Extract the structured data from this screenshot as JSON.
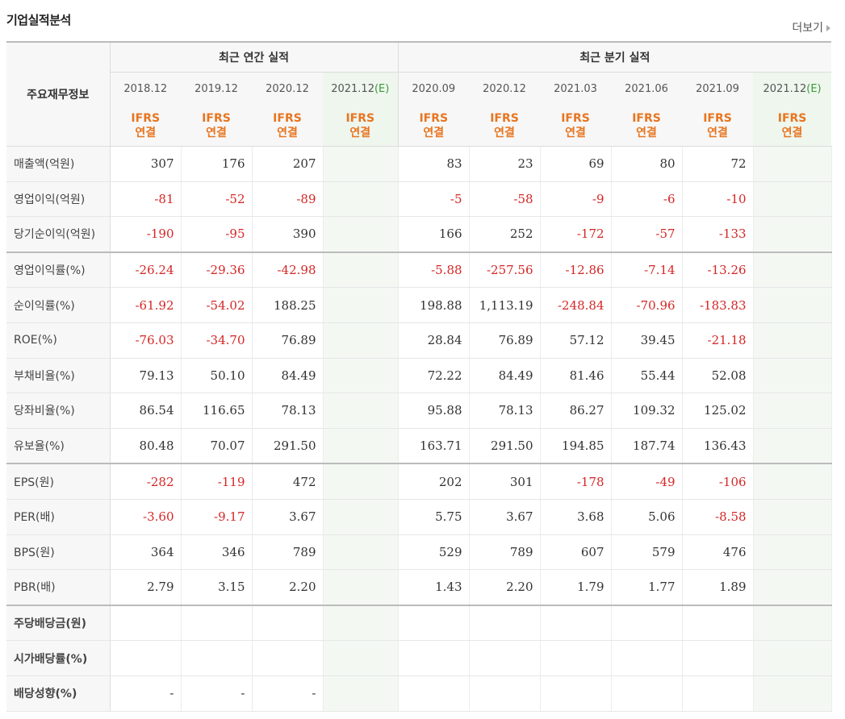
{
  "title": "기업실적분석",
  "more_label": "더보기",
  "header": {
    "row_label": "주요재무정보",
    "annual_group": "최근 연간 실적",
    "quarter_group": "최근 분기 실적",
    "columns": [
      {
        "period": "2018.12",
        "est": false,
        "std": "IFRS",
        "cons": "연결"
      },
      {
        "period": "2019.12",
        "est": false,
        "std": "IFRS",
        "cons": "연결"
      },
      {
        "period": "2020.12",
        "est": false,
        "std": "IFRS",
        "cons": "연결"
      },
      {
        "period": "2021.12",
        "est": true,
        "est_label": "(E)",
        "std": "IFRS",
        "cons": "연결"
      },
      {
        "period": "2020.09",
        "est": false,
        "std": "IFRS",
        "cons": "연결"
      },
      {
        "period": "2020.12",
        "est": false,
        "std": "IFRS",
        "cons": "연결"
      },
      {
        "period": "2021.03",
        "est": false,
        "std": "IFRS",
        "cons": "연결"
      },
      {
        "period": "2021.06",
        "est": false,
        "std": "IFRS",
        "cons": "연결"
      },
      {
        "period": "2021.09",
        "est": false,
        "std": "IFRS",
        "cons": "연결"
      },
      {
        "period": "2021.12",
        "est": true,
        "est_label": "(E)",
        "std": "IFRS",
        "cons": "연결"
      }
    ]
  },
  "rows": [
    {
      "label": "매출액(억원)",
      "values": [
        "307",
        "176",
        "207",
        "",
        "83",
        "23",
        "69",
        "80",
        "72",
        ""
      ]
    },
    {
      "label": "영업이익(억원)",
      "values": [
        "-81",
        "-52",
        "-89",
        "",
        "-5",
        "-58",
        "-9",
        "-6",
        "-10",
        ""
      ]
    },
    {
      "label": "당기순이익(억원)",
      "values": [
        "-190",
        "-95",
        "390",
        "",
        "166",
        "252",
        "-172",
        "-57",
        "-133",
        ""
      ]
    },
    {
      "label": "영업이익률(%)",
      "values": [
        "-26.24",
        "-29.36",
        "-42.98",
        "",
        "-5.88",
        "-257.56",
        "-12.86",
        "-7.14",
        "-13.26",
        ""
      ]
    },
    {
      "label": "순이익률(%)",
      "values": [
        "-61.92",
        "-54.02",
        "188.25",
        "",
        "198.88",
        "1,113.19",
        "-248.84",
        "-70.96",
        "-183.83",
        ""
      ]
    },
    {
      "label": "ROE(%)",
      "values": [
        "-76.03",
        "-34.70",
        "76.89",
        "",
        "28.84",
        "76.89",
        "57.12",
        "39.45",
        "-21.18",
        ""
      ]
    },
    {
      "label": "부채비율(%)",
      "values": [
        "79.13",
        "50.10",
        "84.49",
        "",
        "72.22",
        "84.49",
        "81.46",
        "55.44",
        "52.08",
        ""
      ]
    },
    {
      "label": "당좌비율(%)",
      "values": [
        "86.54",
        "116.65",
        "78.13",
        "",
        "95.88",
        "78.13",
        "86.27",
        "109.32",
        "125.02",
        ""
      ]
    },
    {
      "label": "유보율(%)",
      "values": [
        "80.48",
        "70.07",
        "291.50",
        "",
        "163.71",
        "291.50",
        "194.85",
        "187.74",
        "136.43",
        ""
      ]
    },
    {
      "label": "EPS(원)",
      "values": [
        "-282",
        "-119",
        "472",
        "",
        "202",
        "301",
        "-178",
        "-49",
        "-106",
        ""
      ]
    },
    {
      "label": "PER(배)",
      "values": [
        "-3.60",
        "-9.17",
        "3.67",
        "",
        "5.75",
        "3.67",
        "3.68",
        "5.06",
        "-8.58",
        ""
      ]
    },
    {
      "label": "BPS(원)",
      "values": [
        "364",
        "346",
        "789",
        "",
        "529",
        "789",
        "607",
        "579",
        "476",
        ""
      ]
    },
    {
      "label": "PBR(배)",
      "values": [
        "2.79",
        "3.15",
        "2.20",
        "",
        "1.43",
        "2.20",
        "1.79",
        "1.77",
        "1.89",
        ""
      ]
    },
    {
      "label": "주당배당금(원)",
      "values": [
        "",
        "",
        "",
        "",
        "",
        "",
        "",
        "",
        "",
        ""
      ]
    },
    {
      "label": "시가배당률(%)",
      "values": [
        "",
        "",
        "",
        "",
        "",
        "",
        "",
        "",
        "",
        ""
      ]
    },
    {
      "label": "배당성향(%)",
      "values": [
        "-",
        "-",
        "-",
        "",
        "",
        "",
        "",
        "",
        "",
        ""
      ]
    }
  ],
  "colors": {
    "negative": "#d62626",
    "accent": "#e87520",
    "estimate": "#3a9b3a"
  }
}
